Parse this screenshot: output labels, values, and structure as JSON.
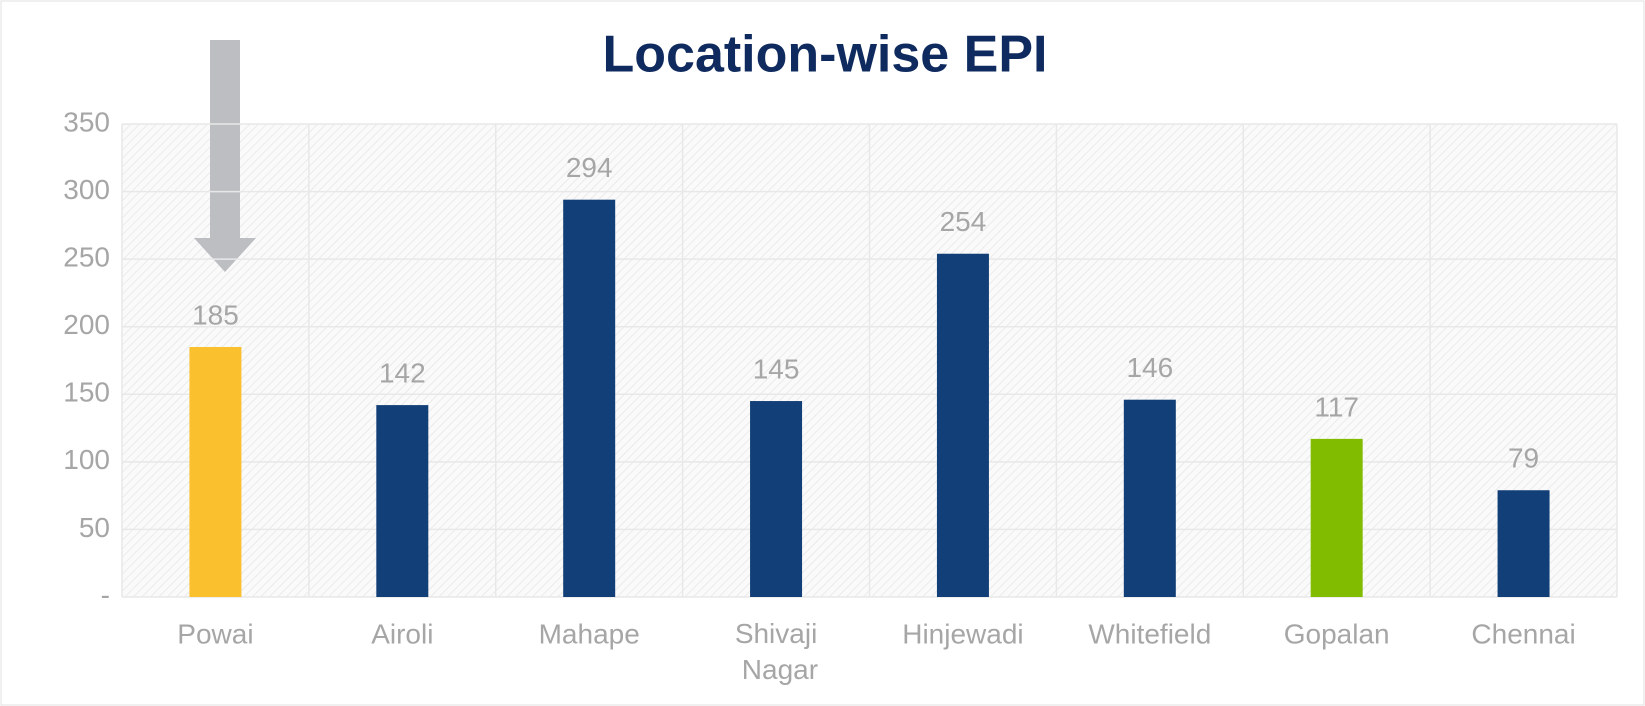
{
  "chart_data": {
    "type": "bar",
    "title": "Location-wise EPI",
    "categories": [
      "Powai",
      "Airoli",
      "Mahape",
      "Shivaji Nagar",
      "Hinjewadi",
      "Whitefield",
      "Gopalan",
      "Chennai"
    ],
    "values": [
      185,
      142,
      294,
      145,
      254,
      146,
      117,
      79
    ],
    "colors": [
      "#fbc02d",
      "#123f77",
      "#123f77",
      "#123f77",
      "#123f77",
      "#123f77",
      "#82bc00",
      "#123f77"
    ],
    "ylim": [
      0,
      350
    ],
    "yticks": [
      {
        "value": 0,
        "label": "-"
      },
      50,
      100,
      150,
      200,
      250,
      300,
      350
    ],
    "grid": true
  }
}
